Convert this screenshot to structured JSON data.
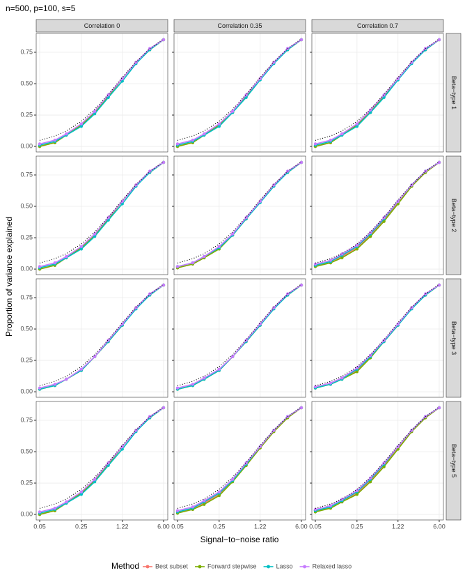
{
  "chart_data": {
    "type": "line",
    "title": "n=500, p=100, s=5",
    "x_label": "Signal−to−noise ratio",
    "y_label": "Proportion of variance explained",
    "legend_title": "Method",
    "col_labels": [
      "Correlation 0",
      "Correlation 0.35",
      "Correlation 0.7"
    ],
    "row_labels": [
      "Beta−type 1",
      "Beta−type 2",
      "Beta−type 3",
      "Beta−type 5"
    ],
    "x": [
      0.05,
      0.09,
      0.14,
      0.25,
      0.42,
      0.71,
      1.22,
      2.07,
      3.52,
      6.0
    ],
    "x_log": true,
    "xlim": [
      0.0437,
      7.06
    ],
    "xticks": [
      0.05,
      0.25,
      1.22,
      {
        "value": 6,
        "label": "6.00"
      }
    ],
    "ylim": [
      -0.044,
      0.9
    ],
    "yticks": [
      {
        "value": 0,
        "label": "0.00"
      },
      0.25,
      {
        "value": 0.5,
        "label": "0.50"
      },
      0.75
    ],
    "grid": true,
    "series_names": [
      "Best subset",
      "Forward stepwise",
      "Lasso",
      "Relaxed lasso"
    ],
    "colors": [
      "#F8766D",
      "#7CAE00",
      "#00BFC4",
      "#C77CFF"
    ],
    "reference": {
      "values": [
        0.048,
        0.083,
        0.123,
        0.2,
        0.296,
        0.415,
        0.55,
        0.674,
        0.779,
        0.857
      ],
      "color": "#000000"
    },
    "panels": [
      {
        "series": [
          [
            0.0,
            0.03,
            0.09,
            0.17,
            0.27,
            0.4,
            0.54,
            0.67,
            0.77,
            0.85
          ],
          [
            0.0,
            0.03,
            0.09,
            0.17,
            0.27,
            0.4,
            0.54,
            0.67,
            0.77,
            0.85
          ],
          [
            0.01,
            0.04,
            0.09,
            0.16,
            0.26,
            0.39,
            0.52,
            0.66,
            0.77,
            0.85
          ],
          [
            0.02,
            0.05,
            0.1,
            0.18,
            0.28,
            0.41,
            0.54,
            0.67,
            0.78,
            0.85
          ]
        ]
      },
      {
        "series": [
          [
            0.0,
            0.03,
            0.09,
            0.17,
            0.27,
            0.4,
            0.54,
            0.67,
            0.77,
            0.85
          ],
          [
            0.0,
            0.03,
            0.09,
            0.17,
            0.27,
            0.4,
            0.54,
            0.67,
            0.77,
            0.85
          ],
          [
            0.01,
            0.04,
            0.09,
            0.16,
            0.27,
            0.39,
            0.53,
            0.66,
            0.77,
            0.85
          ],
          [
            0.02,
            0.05,
            0.1,
            0.18,
            0.28,
            0.41,
            0.54,
            0.67,
            0.78,
            0.85
          ]
        ]
      },
      {
        "series": [
          [
            0.0,
            0.03,
            0.1,
            0.17,
            0.28,
            0.4,
            0.54,
            0.67,
            0.77,
            0.85
          ],
          [
            0.0,
            0.03,
            0.09,
            0.17,
            0.27,
            0.4,
            0.54,
            0.67,
            0.77,
            0.85
          ],
          [
            0.01,
            0.04,
            0.09,
            0.16,
            0.27,
            0.39,
            0.53,
            0.66,
            0.77,
            0.85
          ],
          [
            0.02,
            0.05,
            0.1,
            0.18,
            0.29,
            0.41,
            0.54,
            0.67,
            0.78,
            0.85
          ]
        ]
      },
      {
        "series": [
          [
            0.0,
            0.03,
            0.09,
            0.17,
            0.27,
            0.4,
            0.54,
            0.67,
            0.77,
            0.85
          ],
          [
            0.0,
            0.03,
            0.09,
            0.17,
            0.27,
            0.4,
            0.54,
            0.67,
            0.77,
            0.85
          ],
          [
            0.01,
            0.04,
            0.09,
            0.16,
            0.26,
            0.39,
            0.52,
            0.66,
            0.77,
            0.85
          ],
          [
            0.02,
            0.05,
            0.1,
            0.18,
            0.28,
            0.41,
            0.54,
            0.67,
            0.78,
            0.85
          ]
        ]
      },
      {
        "series": [
          [
            0.01,
            0.04,
            0.09,
            0.17,
            0.27,
            0.4,
            0.54,
            0.67,
            0.77,
            0.85
          ],
          [
            0.01,
            0.04,
            0.09,
            0.16,
            0.27,
            0.4,
            0.54,
            0.67,
            0.77,
            0.85
          ],
          [
            0.02,
            0.05,
            0.1,
            0.17,
            0.27,
            0.4,
            0.53,
            0.66,
            0.77,
            0.85
          ],
          [
            0.02,
            0.05,
            0.1,
            0.18,
            0.28,
            0.41,
            0.54,
            0.67,
            0.78,
            0.85
          ]
        ]
      },
      {
        "series": [
          [
            0.03,
            0.05,
            0.1,
            0.17,
            0.27,
            0.39,
            0.53,
            0.66,
            0.77,
            0.85
          ],
          [
            0.02,
            0.05,
            0.09,
            0.16,
            0.26,
            0.38,
            0.52,
            0.66,
            0.77,
            0.85
          ],
          [
            0.03,
            0.06,
            0.11,
            0.18,
            0.28,
            0.4,
            0.54,
            0.67,
            0.78,
            0.85
          ],
          [
            0.04,
            0.07,
            0.12,
            0.19,
            0.29,
            0.41,
            0.54,
            0.67,
            0.78,
            0.85
          ]
        ]
      },
      {
        "series": [
          [
            0.02,
            0.05,
            0.1,
            0.17,
            0.28,
            0.4,
            0.53,
            0.67,
            0.77,
            0.85
          ],
          [
            0.02,
            0.05,
            0.1,
            0.17,
            0.28,
            0.4,
            0.53,
            0.67,
            0.77,
            0.85
          ],
          [
            0.02,
            0.05,
            0.1,
            0.17,
            0.28,
            0.4,
            0.53,
            0.66,
            0.77,
            0.85
          ],
          [
            0.03,
            0.06,
            0.1,
            0.18,
            0.28,
            0.41,
            0.54,
            0.67,
            0.78,
            0.85
          ]
        ]
      },
      {
        "series": [
          [
            0.02,
            0.05,
            0.1,
            0.17,
            0.28,
            0.4,
            0.53,
            0.67,
            0.77,
            0.85
          ],
          [
            0.02,
            0.05,
            0.1,
            0.17,
            0.28,
            0.4,
            0.53,
            0.67,
            0.77,
            0.85
          ],
          [
            0.02,
            0.05,
            0.1,
            0.17,
            0.28,
            0.4,
            0.53,
            0.66,
            0.77,
            0.85
          ],
          [
            0.03,
            0.06,
            0.11,
            0.18,
            0.28,
            0.41,
            0.54,
            0.67,
            0.78,
            0.85
          ]
        ]
      },
      {
        "series": [
          [
            0.03,
            0.06,
            0.1,
            0.17,
            0.28,
            0.4,
            0.53,
            0.67,
            0.77,
            0.85
          ],
          [
            0.03,
            0.06,
            0.1,
            0.16,
            0.27,
            0.4,
            0.53,
            0.67,
            0.77,
            0.85
          ],
          [
            0.03,
            0.06,
            0.1,
            0.18,
            0.28,
            0.4,
            0.53,
            0.66,
            0.77,
            0.85
          ],
          [
            0.04,
            0.07,
            0.11,
            0.19,
            0.29,
            0.41,
            0.54,
            0.67,
            0.78,
            0.85
          ]
        ]
      },
      {
        "series": [
          [
            0.0,
            0.03,
            0.09,
            0.17,
            0.27,
            0.4,
            0.54,
            0.67,
            0.77,
            0.85
          ],
          [
            0.0,
            0.03,
            0.09,
            0.17,
            0.27,
            0.4,
            0.54,
            0.67,
            0.77,
            0.85
          ],
          [
            0.01,
            0.04,
            0.09,
            0.16,
            0.26,
            0.39,
            0.52,
            0.66,
            0.77,
            0.85
          ],
          [
            0.02,
            0.05,
            0.1,
            0.18,
            0.28,
            0.41,
            0.54,
            0.67,
            0.78,
            0.85
          ]
        ]
      },
      {
        "series": [
          [
            0.02,
            0.04,
            0.09,
            0.16,
            0.27,
            0.39,
            0.53,
            0.66,
            0.77,
            0.85
          ],
          [
            0.01,
            0.04,
            0.08,
            0.15,
            0.26,
            0.39,
            0.53,
            0.66,
            0.77,
            0.85
          ],
          [
            0.02,
            0.05,
            0.1,
            0.17,
            0.27,
            0.4,
            0.54,
            0.67,
            0.78,
            0.85
          ],
          [
            0.03,
            0.06,
            0.11,
            0.18,
            0.28,
            0.41,
            0.54,
            0.67,
            0.78,
            0.85
          ]
        ]
      },
      {
        "series": [
          [
            0.03,
            0.05,
            0.1,
            0.17,
            0.27,
            0.39,
            0.53,
            0.66,
            0.77,
            0.85
          ],
          [
            0.02,
            0.05,
            0.1,
            0.16,
            0.26,
            0.38,
            0.52,
            0.66,
            0.77,
            0.85
          ],
          [
            0.03,
            0.06,
            0.11,
            0.18,
            0.28,
            0.4,
            0.54,
            0.67,
            0.78,
            0.85
          ],
          [
            0.04,
            0.07,
            0.12,
            0.19,
            0.29,
            0.41,
            0.54,
            0.67,
            0.78,
            0.85
          ]
        ]
      }
    ]
  }
}
